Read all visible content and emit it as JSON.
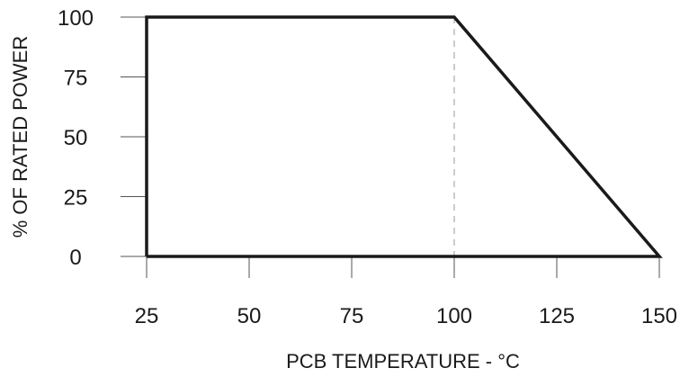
{
  "chart_data": {
    "type": "line",
    "title": "",
    "xlabel": "PCB TEMPERATURE - °C",
    "ylabel": "% OF RATED POWER",
    "xlim": [
      25,
      150
    ],
    "ylim": [
      0,
      100
    ],
    "x_ticks": [
      25,
      50,
      75,
      100,
      125,
      150
    ],
    "y_ticks": [
      0,
      25,
      50,
      75,
      100
    ],
    "series": [
      {
        "x": [
          25,
          25,
          100,
          150,
          25
        ],
        "y": [
          0,
          100,
          100,
          0,
          0
        ]
      }
    ],
    "annotations": [
      {
        "type": "vertical-dashed-line",
        "x": 100
      }
    ],
    "grid": false,
    "colors": {
      "line": "#1a1a1a",
      "dashed": "#9a9a9a",
      "axis": "#555555"
    }
  }
}
